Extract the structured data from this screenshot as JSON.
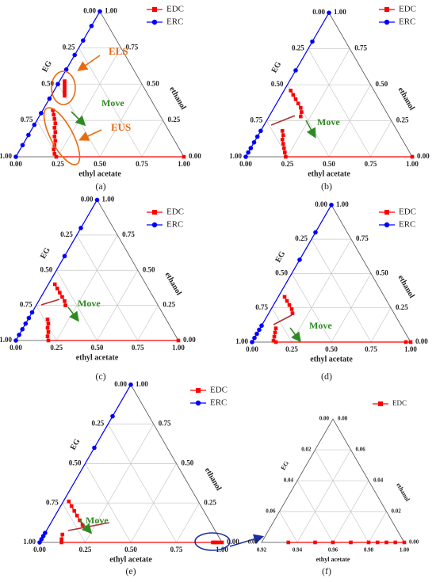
{
  "chart_data": [
    {
      "type": "ternary",
      "label": "(a)",
      "ea_title": "ethyl acetate",
      "eg_title": "EG",
      "ethanol_title": "ethanol",
      "ea_lim": [
        0,
        1
      ],
      "eg_lim": [
        0,
        1
      ],
      "ethanol_lim": [
        0,
        1
      ],
      "ea_ticks": [
        {
          "value": 0,
          "label": "0.00"
        },
        {
          "value": 0.25,
          "label": "0.25"
        },
        {
          "value": 0.5,
          "label": "0.50"
        },
        {
          "value": 0.75,
          "label": "0.75"
        },
        {
          "value": 1,
          "label": "1.00"
        }
      ],
      "eg_ticks": [
        {
          "value": 0,
          "label": "0.00"
        },
        {
          "value": 0.25,
          "label": "0.25"
        },
        {
          "value": 0.5,
          "label": "0.50"
        },
        {
          "value": 0.75,
          "label": "0.75"
        },
        {
          "value": 1,
          "label": "1.00"
        }
      ],
      "ethanol_ticks": [
        {
          "value": 0,
          "label": "0.00"
        },
        {
          "value": 0.25,
          "label": "0.25"
        },
        {
          "value": 0.5,
          "label": "0.50"
        },
        {
          "value": 0.75,
          "label": "0.75"
        },
        {
          "value": 1,
          "label": "1.00"
        }
      ],
      "annotations": [
        "ELS",
        "Move",
        "EUS"
      ],
      "series": [
        {
          "name": "EDC",
          "color": "#ff0000",
          "marker": "square",
          "x": [
            0.03,
            0.04,
            0.05,
            0.06,
            0.07,
            0.08,
            null,
            0.06,
            0.08,
            0.1,
            0.12,
            0.13,
            0.15,
            0.16,
            0.18,
            0.19,
            0.2,
            0.22,
            0.24,
            1
          ],
          "y": [
            0.52,
            0.5,
            0.48,
            0.46,
            0.44,
            0.42,
            null,
            0.32,
            0.29,
            0.26,
            0.23,
            0.2,
            0.17,
            0.14,
            0.11,
            0.08,
            0.05,
            0.02,
            0,
            0
          ]
        },
        {
          "name": "ERC",
          "color": "#0000ff",
          "marker": "circle",
          "x": [
            0,
            0,
            0,
            0,
            0,
            0,
            0,
            0,
            0,
            0,
            0,
            0
          ],
          "y": [
            0,
            0.08,
            0.15,
            0.22,
            0.3,
            0.4,
            0.5,
            0.6,
            0.7,
            0.8,
            0.9,
            1
          ]
        }
      ]
    },
    {
      "type": "ternary",
      "label": "(b)",
      "ea_title": "ethyl acetate",
      "eg_title": "EG",
      "ethanol_title": "ethanol",
      "ea_lim": [
        0,
        1
      ],
      "eg_lim": [
        0,
        1
      ],
      "ethanol_lim": [
        0,
        1
      ],
      "ea_ticks": [
        {
          "value": 0,
          "label": "0.00"
        },
        {
          "value": 0.25,
          "label": "0.25"
        },
        {
          "value": 0.5,
          "label": "0.50"
        },
        {
          "value": 0.75,
          "label": "0.75"
        },
        {
          "value": 1,
          "label": "1.00"
        }
      ],
      "eg_ticks": [
        {
          "value": 0,
          "label": "0.00"
        },
        {
          "value": 0.25,
          "label": "0.25"
        },
        {
          "value": 0.5,
          "label": "0.50"
        },
        {
          "value": 0.75,
          "label": "0.75"
        },
        {
          "value": 1,
          "label": "1.00"
        }
      ],
      "ethanol_ticks": [
        {
          "value": 0,
          "label": "0.00"
        },
        {
          "value": 0.25,
          "label": "0.25"
        },
        {
          "value": 0.5,
          "label": "0.50"
        },
        {
          "value": 0.75,
          "label": "0.75"
        },
        {
          "value": 1,
          "label": "1.00"
        }
      ],
      "annotations": [
        "Move"
      ],
      "series": [
        {
          "name": "EDC",
          "color": "#ff0000",
          "marker": "square",
          "x": [
            0.04,
            0.07,
            0.1,
            0.13,
            0.16,
            0.18,
            0.19,
            null,
            0.13,
            0.15,
            0.16,
            0.18,
            0.2,
            0.22,
            0.24,
            1
          ],
          "y": [
            0.46,
            0.43,
            0.4,
            0.37,
            0.34,
            0.31,
            0.28,
            null,
            0.18,
            0.15,
            0.12,
            0.09,
            0.06,
            0.03,
            0,
            0
          ]
        },
        {
          "name": "ERC",
          "color": "#0000ff",
          "marker": "circle",
          "x": [
            0,
            0,
            0,
            0,
            0,
            0,
            0,
            0,
            0
          ],
          "y": [
            0,
            0.03,
            0.06,
            0.1,
            0.14,
            0.18,
            0.6,
            0.8,
            1
          ]
        }
      ]
    },
    {
      "type": "ternary",
      "label": "(c)",
      "ea_title": "ethyl acetate",
      "eg_title": "EG",
      "ethanol_title": "ethanol",
      "ea_lim": [
        0,
        1
      ],
      "eg_lim": [
        0,
        1
      ],
      "ethanol_lim": [
        0,
        1
      ],
      "ea_ticks": [
        {
          "value": 0,
          "label": "0.00"
        },
        {
          "value": 0.25,
          "label": "0.25"
        },
        {
          "value": 0.5,
          "label": "0.50"
        },
        {
          "value": 0.75,
          "label": "0.75"
        },
        {
          "value": 1,
          "label": "1.00"
        }
      ],
      "eg_ticks": [
        {
          "value": 0,
          "label": "0.00"
        },
        {
          "value": 0.25,
          "label": "0.25"
        },
        {
          "value": 0.5,
          "label": "0.50"
        },
        {
          "value": 0.75,
          "label": "0.75"
        },
        {
          "value": 1,
          "label": "1.00"
        }
      ],
      "ethanol_ticks": [
        {
          "value": 0,
          "label": "0.00"
        },
        {
          "value": 0.25,
          "label": "0.25"
        },
        {
          "value": 0.5,
          "label": "0.50"
        },
        {
          "value": 0.75,
          "label": "0.75"
        },
        {
          "value": 1,
          "label": "1.00"
        }
      ],
      "annotations": [
        "Move"
      ],
      "series": [
        {
          "name": "EDC",
          "color": "#ff0000",
          "marker": "square",
          "x": [
            0.04,
            0.07,
            0.1,
            0.13,
            0.16,
            0.18,
            null,
            0.12,
            0.14,
            0.15,
            0.17,
            0.18,
            0.2,
            1
          ],
          "y": [
            0.4,
            0.37,
            0.34,
            0.31,
            0.28,
            0.25,
            null,
            0.15,
            0.12,
            0.09,
            0.06,
            0.03,
            0,
            0
          ]
        },
        {
          "name": "ERC",
          "color": "#0000ff",
          "marker": "circle",
          "x": [
            0,
            0,
            0,
            0,
            0,
            0,
            0,
            0,
            0
          ],
          "y": [
            0,
            0.04,
            0.08,
            0.12,
            0.16,
            0.2,
            0.6,
            0.8,
            1
          ]
        }
      ]
    },
    {
      "type": "ternary",
      "label": "(d)",
      "ea_title": "ethyl acetate",
      "eg_title": "EG",
      "ethanol_title": "ethanol",
      "ea_lim": [
        0,
        1
      ],
      "eg_lim": [
        0,
        1
      ],
      "ethanol_lim": [
        0,
        1
      ],
      "ea_ticks": [
        {
          "value": 0,
          "label": "0.00"
        },
        {
          "value": 0.25,
          "label": "0.25"
        },
        {
          "value": 0.5,
          "label": "0.50"
        },
        {
          "value": 0.75,
          "label": "0.75"
        },
        {
          "value": 1,
          "label": "1.00"
        }
      ],
      "eg_ticks": [
        {
          "value": 0,
          "label": "0.00"
        },
        {
          "value": 0.25,
          "label": "0.25"
        },
        {
          "value": 0.5,
          "label": "0.50"
        },
        {
          "value": 0.75,
          "label": "0.75"
        },
        {
          "value": 1,
          "label": "1.00"
        }
      ],
      "ethanol_ticks": [
        {
          "value": 0,
          "label": "0.00"
        },
        {
          "value": 0.25,
          "label": "0.25"
        },
        {
          "value": 0.5,
          "label": "0.50"
        },
        {
          "value": 0.75,
          "label": "0.75"
        },
        {
          "value": 1,
          "label": "1.00"
        }
      ],
      "annotations": [
        "Move"
      ],
      "series": [
        {
          "name": "EDC",
          "color": "#ff0000",
          "marker": "square",
          "x": [
            0.04,
            0.07,
            0.1,
            0.13,
            0.15,
            null,
            0.1,
            0.11,
            0.12,
            0.13,
            0.15,
            0.97,
            1
          ],
          "y": [
            0.33,
            0.3,
            0.27,
            0.24,
            0.21,
            null,
            0.1,
            0.07,
            0.04,
            0.01,
            0,
            0,
            0
          ]
        },
        {
          "name": "ERC",
          "color": "#0000ff",
          "marker": "circle",
          "x": [
            0,
            0,
            0,
            0,
            0,
            0,
            0,
            0
          ],
          "y": [
            0,
            0.03,
            0.06,
            0.09,
            0.12,
            0.6,
            0.8,
            1
          ]
        }
      ]
    },
    {
      "type": "ternary",
      "label": "(e)",
      "ea_title": "ethyl acetate",
      "eg_title": "EG",
      "ethanol_title": "ethanol",
      "ea_lim": [
        0,
        1
      ],
      "eg_lim": [
        0,
        1
      ],
      "ethanol_lim": [
        0,
        1
      ],
      "ea_ticks": [
        {
          "value": 0,
          "label": "0.00"
        },
        {
          "value": 0.25,
          "label": "0.25"
        },
        {
          "value": 0.5,
          "label": "0.50"
        },
        {
          "value": 0.75,
          "label": "0.75"
        },
        {
          "value": 1,
          "label": "1.00"
        }
      ],
      "eg_ticks": [
        {
          "value": 0,
          "label": "0.00"
        },
        {
          "value": 0.25,
          "label": "0.25"
        },
        {
          "value": 0.5,
          "label": "0.50"
        },
        {
          "value": 0.75,
          "label": "0.75"
        },
        {
          "value": 1,
          "label": "1.00"
        }
      ],
      "ethanol_ticks": [
        {
          "value": 0,
          "label": "0.00"
        },
        {
          "value": 0.25,
          "label": "0.25"
        },
        {
          "value": 0.5,
          "label": "0.50"
        },
        {
          "value": 0.75,
          "label": "0.75"
        },
        {
          "value": 1,
          "label": "1.00"
        }
      ],
      "annotations": [
        "Move"
      ],
      "series": [
        {
          "name": "EDC",
          "color": "#ff0000",
          "marker": "square",
          "x": [
            0.03,
            0.06,
            0.09,
            0.12,
            0.15,
            0.18,
            null,
            0.1,
            0.11,
            0.12,
            0.95,
            0.96,
            0.97,
            0.98,
            1
          ],
          "y": [
            0.26,
            0.23,
            0.2,
            0.17,
            0.14,
            0.11,
            null,
            0.05,
            0.02,
            0,
            0,
            0,
            0,
            0,
            0
          ]
        },
        {
          "name": "ERC",
          "color": "#0000ff",
          "marker": "circle",
          "x": [
            0,
            0,
            0,
            0,
            0,
            0,
            0
          ],
          "y": [
            0,
            0.02,
            0.04,
            0.06,
            0.6,
            0.8,
            1
          ]
        }
      ]
    },
    {
      "type": "ternary",
      "label": "(f)",
      "ea_title": "ethyl acetate",
      "eg_title": "EG",
      "ethanol_title": "ethanol",
      "ea_lim": [
        0.92,
        1
      ],
      "eg_lim": [
        0,
        0.08
      ],
      "ethanol_lim": [
        0,
        0.08
      ],
      "ea_ticks": [
        {
          "value": 0.92,
          "label": "0.92"
        },
        {
          "value": 0.94,
          "label": "0.94"
        },
        {
          "value": 0.96,
          "label": "0.96"
        },
        {
          "value": 0.98,
          "label": "0.98"
        },
        {
          "value": 1,
          "label": "1.00"
        }
      ],
      "eg_ticks": [
        {
          "value": 0,
          "label": "0.00"
        },
        {
          "value": 0.02,
          "label": "0.02"
        },
        {
          "value": 0.04,
          "label": "0.04"
        },
        {
          "value": 0.06,
          "label": "0.06"
        },
        {
          "value": 0.08,
          "label": "0.08"
        }
      ],
      "ethanol_ticks": [
        {
          "value": 0,
          "label": "0.00"
        },
        {
          "value": 0.02,
          "label": "0.02"
        },
        {
          "value": 0.04,
          "label": "0.04"
        },
        {
          "value": 0.06,
          "label": "0.06"
        },
        {
          "value": 0.08,
          "label": "0.08"
        }
      ],
      "annotations": [],
      "series": [
        {
          "name": "EDC",
          "color": "#ff0000",
          "marker": "square",
          "x": [
            0.935,
            0.95,
            0.96,
            0.97,
            0.98,
            0.985,
            0.99,
            0.995,
            1
          ],
          "y": [
            0,
            0,
            0,
            0,
            0,
            0,
            0,
            0,
            0
          ]
        }
      ]
    }
  ]
}
